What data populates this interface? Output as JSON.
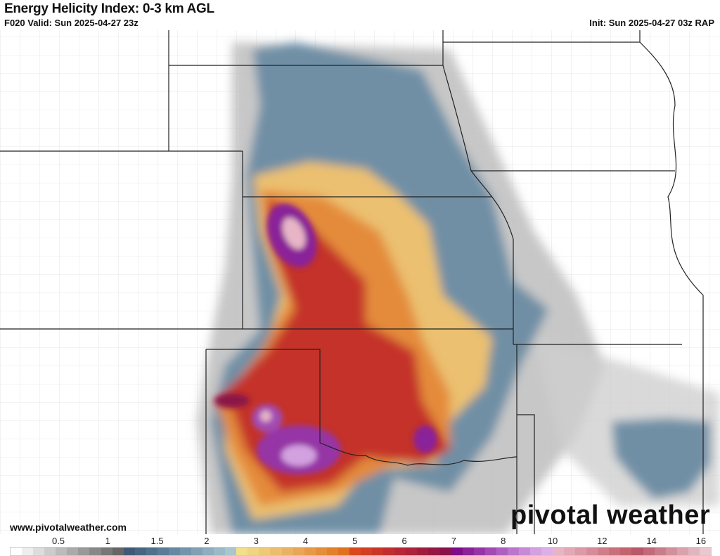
{
  "header": {
    "title": "Energy Helicity Index: 0-3 km AGL",
    "valid": "F020 Valid: Sun 2025-04-27 23z",
    "init": "Init: Sun 2025-04-27 03z RAP"
  },
  "footer": {
    "url": "www.pivotalweather.com",
    "brand": "pivotal weather"
  },
  "colorbar": {
    "ticks": [
      "0.5",
      "1",
      "1.5",
      "2",
      "3",
      "4",
      "5",
      "6",
      "7",
      "8",
      "10",
      "12",
      "14",
      "16"
    ],
    "colors": [
      "#ffffff",
      "#eeeeee",
      "#dddddd",
      "#cccccc",
      "#bbbbbb",
      "#aaaaaa",
      "#999999",
      "#888888",
      "#777777",
      "#666666",
      "#3f5a74",
      "#466680",
      "#4f718b",
      "#5a7d96",
      "#6689a1",
      "#7395ab",
      "#80a1b5",
      "#8eadbf",
      "#9bb9c7",
      "#a9c6ce",
      "#f1df8a",
      "#efd481",
      "#edc978",
      "#ebbe6e",
      "#e9b263",
      "#e8a656",
      "#e69a48",
      "#e48d3a",
      "#e2802c",
      "#e0721f",
      "#d9481e",
      "#d23f23",
      "#c93628",
      "#c02f2e",
      "#b62834",
      "#ab2239",
      "#a01c3f",
      "#951744",
      "#8a124a",
      "#7e0d8a",
      "#8a2299",
      "#9636a6",
      "#a24bb3",
      "#ae60c0",
      "#bb76cc",
      "#c78bd6",
      "#d3a0e0",
      "#dcb0e6",
      "#e8b5c6",
      "#e3a8b6",
      "#dc9aa7",
      "#d68c98",
      "#cf7e89",
      "#c9717b",
      "#c2646e",
      "#b85868",
      "#c06a7a",
      "#c87d8b",
      "#d0909c",
      "#d8a3ad",
      "#e0b6be",
      "#e8c9cf"
    ]
  }
}
